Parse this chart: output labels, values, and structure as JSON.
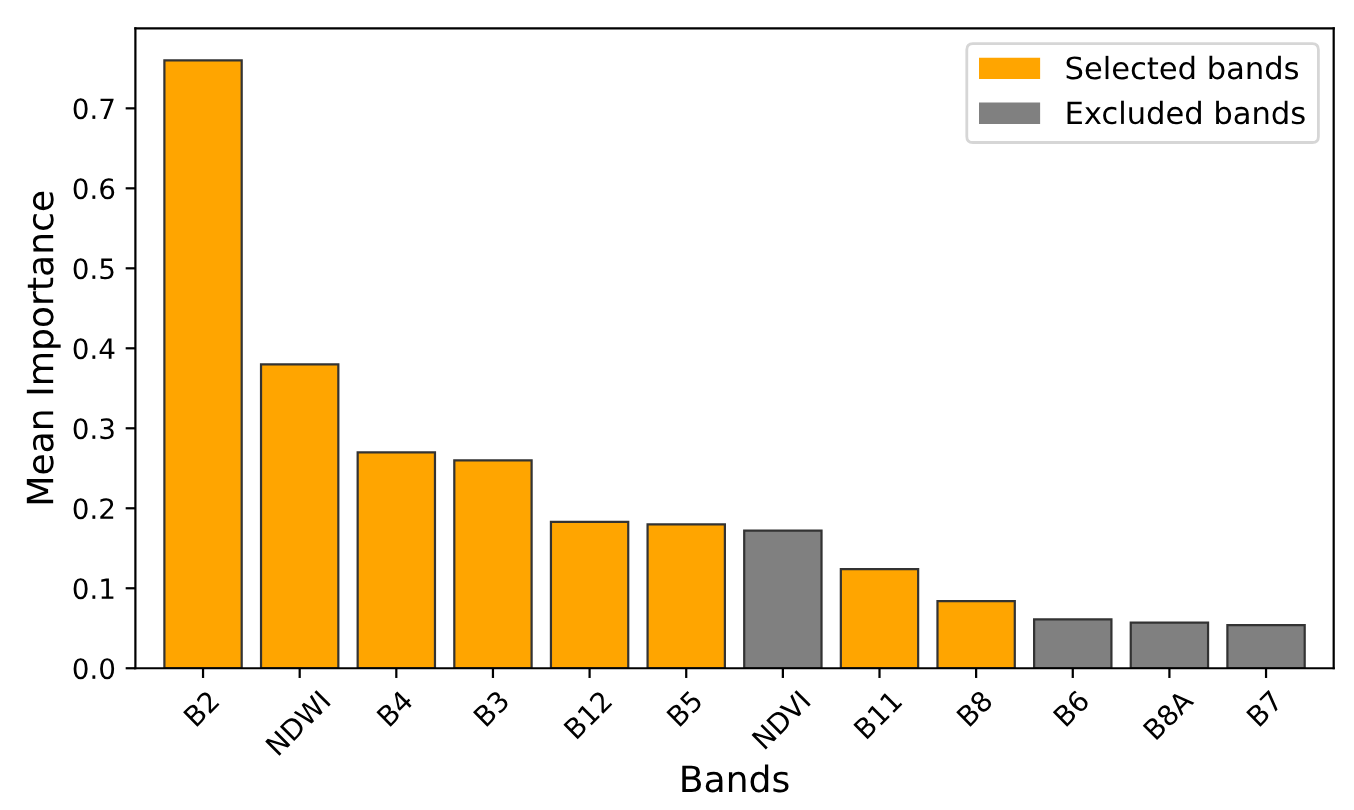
{
  "chart_data": {
    "type": "bar",
    "xlabel": "Bands",
    "ylabel": "Mean Importance",
    "categories": [
      "B2",
      "NDWI",
      "B4",
      "B3",
      "B12",
      "B5",
      "NDVI",
      "B11",
      "B8",
      "B6",
      "B8A",
      "B7"
    ],
    "series": [
      {
        "name": "Selected bands",
        "color": "#ffa500",
        "values": [
          0.76,
          0.38,
          0.27,
          0.26,
          0.183,
          0.18,
          null,
          0.124,
          0.084,
          null,
          null,
          null
        ]
      },
      {
        "name": "Excluded bands",
        "color": "#808080",
        "values": [
          null,
          null,
          null,
          null,
          null,
          null,
          0.172,
          null,
          null,
          0.061,
          0.057,
          0.054
        ]
      }
    ],
    "ylim": [
      0,
      0.8
    ],
    "yticks": [
      {
        "value": 0,
        "label": "0.0"
      },
      0.1,
      0.2,
      0.3,
      0.4,
      0.5,
      0.6,
      0.7
    ],
    "grid": false,
    "legend": "top right"
  }
}
